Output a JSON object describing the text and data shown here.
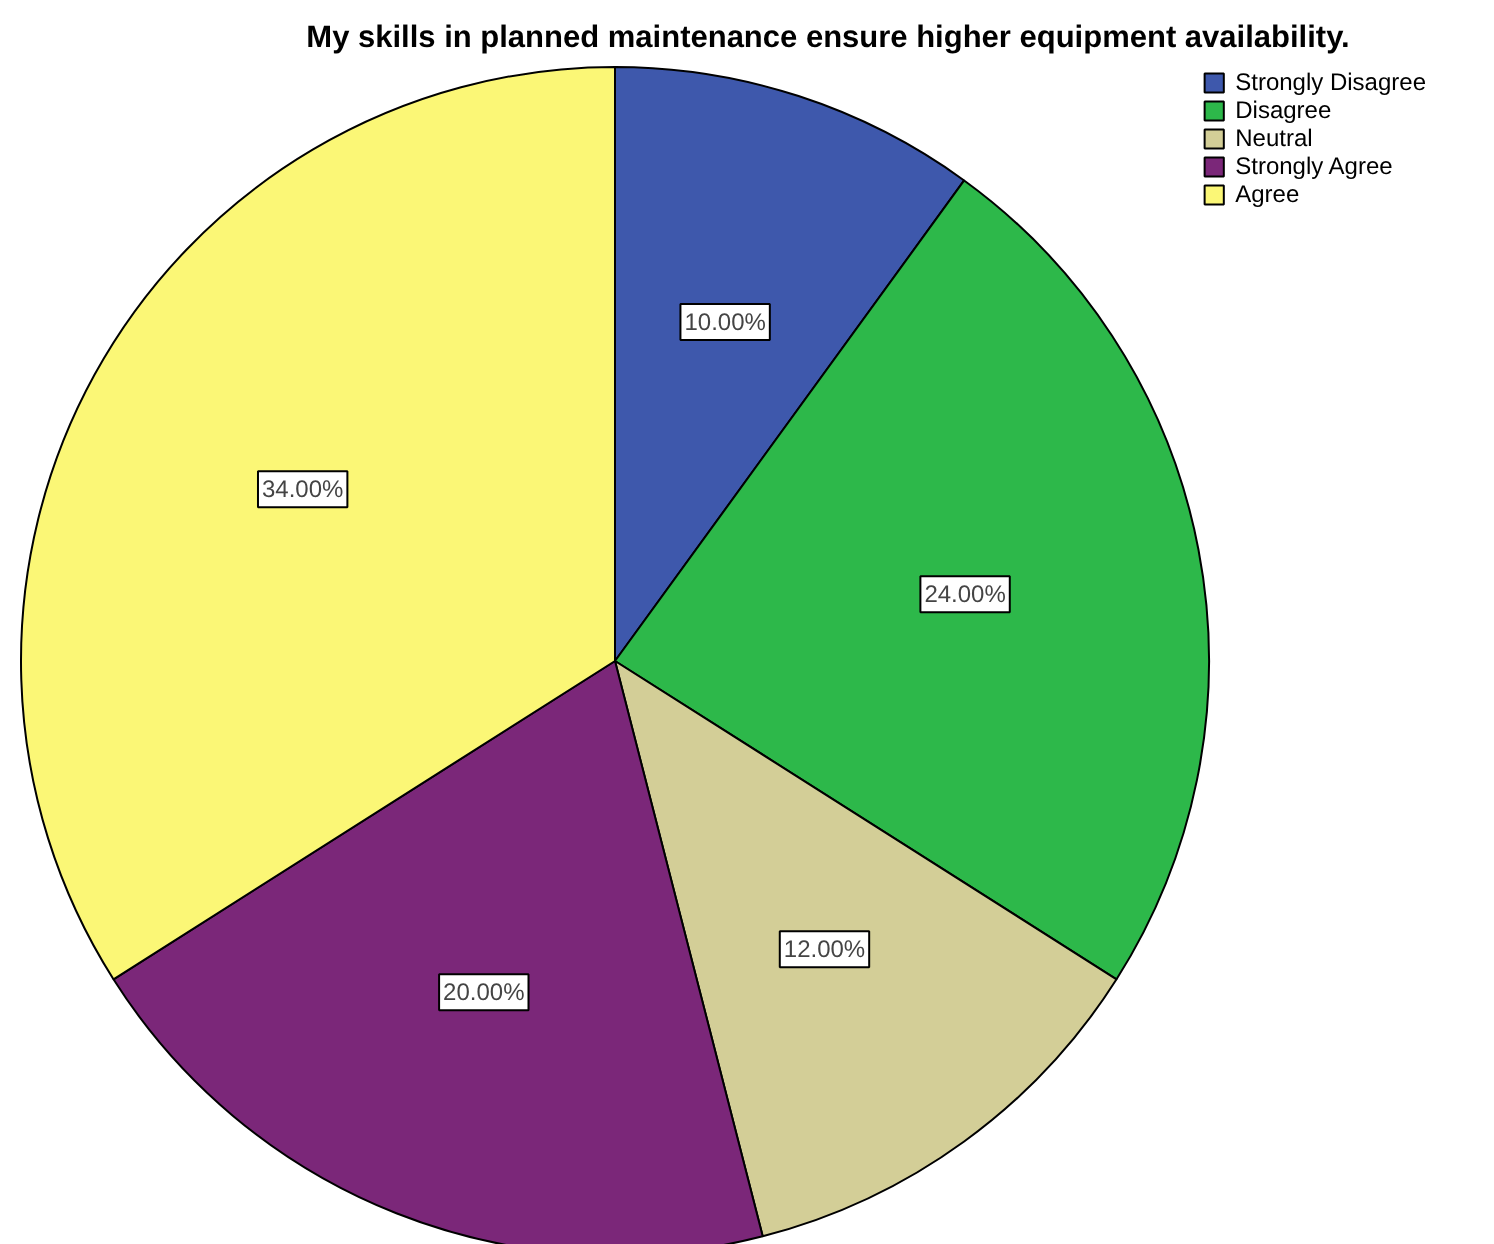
{
  "chart_data": {
    "type": "pie",
    "title": "My skills in planned maintenance ensure higher equipment availability.",
    "categories": [
      "Strongly Disagree",
      "Disagree",
      "Neutral",
      "Strongly Agree",
      "Agree"
    ],
    "values": [
      10,
      24,
      12,
      20,
      34
    ],
    "colors": [
      "#3e58ac",
      "#2db84a",
      "#d3ce97",
      "#7b2779",
      "#fbf776"
    ],
    "value_labels": [
      "10.00%",
      "24.00%",
      "12.00%",
      "20.00%",
      "34.00%"
    ],
    "legend": "top right"
  }
}
